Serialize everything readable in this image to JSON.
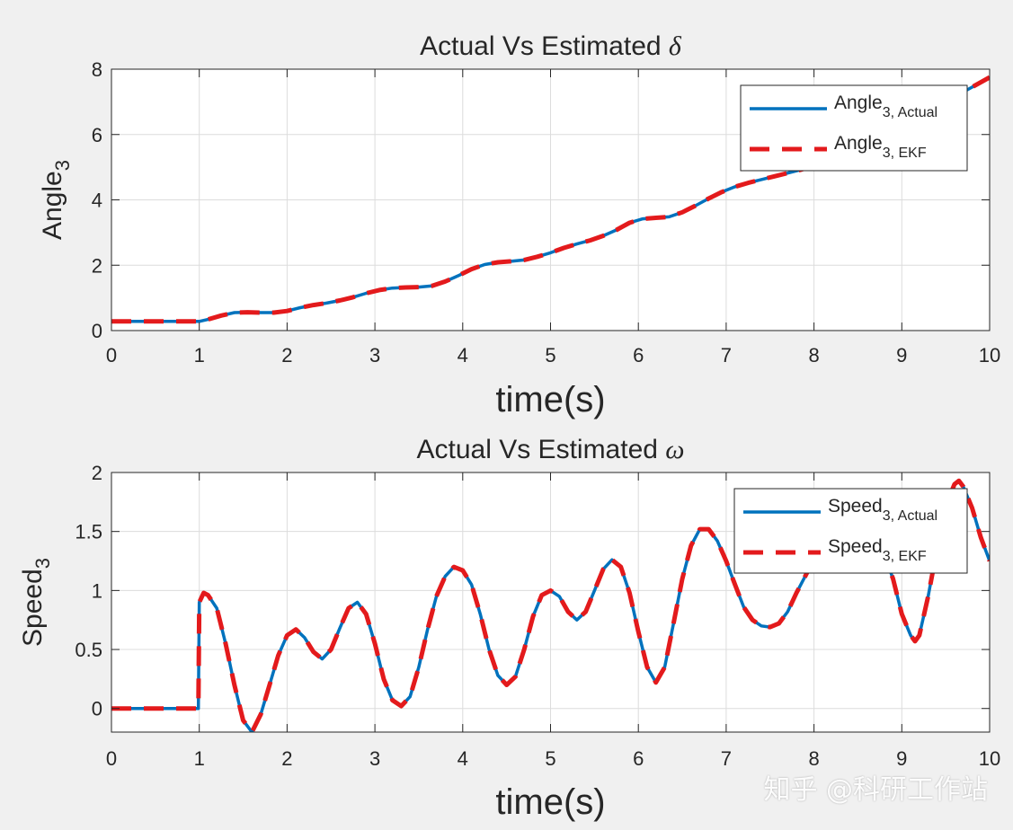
{
  "figure": {
    "background": "#f0f0f0",
    "watermark": "知乎 @科研工作站"
  },
  "chart_data": [
    {
      "type": "line",
      "title": "Actual Vs Estimated δ",
      "title_prefix": "Actual Vs Estimated ",
      "title_symbol": "δ",
      "xlabel": "time(s)",
      "ylabel": "Angle",
      "ylabel_sub": "3",
      "xlim": [
        0,
        10
      ],
      "ylim": [
        0,
        8
      ],
      "xticks": [
        0,
        1,
        2,
        3,
        4,
        5,
        6,
        7,
        8,
        9,
        10
      ],
      "yticks": [
        0,
        2,
        4,
        6,
        8
      ],
      "ytick_labels": [
        "0",
        "2",
        "4",
        "6",
        "8"
      ],
      "grid": true,
      "legend_position": "top-right",
      "series": [
        {
          "name": "Angle3, Actual",
          "label": "Angle",
          "sub": "3, Actual",
          "color": "#0072bd",
          "style": "solid",
          "x": [
            0,
            0.5,
            1,
            1.1,
            1.25,
            1.4,
            1.55,
            1.7,
            1.85,
            2,
            2.15,
            2.3,
            2.45,
            2.6,
            2.75,
            2.9,
            3.05,
            3.2,
            3.35,
            3.5,
            3.65,
            3.8,
            3.95,
            4.1,
            4.25,
            4.4,
            4.55,
            4.7,
            4.85,
            5,
            5.15,
            5.3,
            5.45,
            5.6,
            5.75,
            5.9,
            6.05,
            6.2,
            6.35,
            6.5,
            6.65,
            6.8,
            6.95,
            7.1,
            7.25,
            7.4,
            7.55,
            7.7,
            7.85,
            8,
            8.2,
            8.4,
            8.6,
            8.8,
            9,
            9.2,
            9.4,
            9.6,
            9.8,
            10
          ],
          "y": [
            0.28,
            0.28,
            0.28,
            0.34,
            0.46,
            0.55,
            0.56,
            0.55,
            0.55,
            0.6,
            0.7,
            0.78,
            0.84,
            0.92,
            1.02,
            1.14,
            1.24,
            1.3,
            1.32,
            1.33,
            1.37,
            1.5,
            1.68,
            1.88,
            2.02,
            2.09,
            2.12,
            2.16,
            2.26,
            2.38,
            2.53,
            2.65,
            2.76,
            2.9,
            3.08,
            3.3,
            3.42,
            3.45,
            3.48,
            3.62,
            3.82,
            4.04,
            4.24,
            4.4,
            4.52,
            4.62,
            4.72,
            4.82,
            4.92,
            5.05,
            5.25,
            5.45,
            5.68,
            5.95,
            6.2,
            6.5,
            6.85,
            7.15,
            7.45,
            7.75
          ]
        },
        {
          "name": "Angle3, EKF",
          "label": "Angle",
          "sub": "3, EKF",
          "color": "#e31a1c",
          "style": "dashed",
          "x": [
            0,
            0.5,
            1,
            1.1,
            1.25,
            1.4,
            1.55,
            1.7,
            1.85,
            2,
            2.15,
            2.3,
            2.45,
            2.6,
            2.75,
            2.9,
            3.05,
            3.2,
            3.35,
            3.5,
            3.65,
            3.8,
            3.95,
            4.1,
            4.25,
            4.4,
            4.55,
            4.7,
            4.85,
            5,
            5.15,
            5.3,
            5.45,
            5.6,
            5.75,
            5.9,
            6.05,
            6.2,
            6.35,
            6.5,
            6.65,
            6.8,
            6.95,
            7.1,
            7.25,
            7.4,
            7.55,
            7.7,
            7.85,
            8,
            8.2,
            8.4,
            8.6,
            8.8,
            9,
            9.2,
            9.4,
            9.6,
            9.8,
            10
          ],
          "y": [
            0.28,
            0.28,
            0.28,
            0.34,
            0.46,
            0.55,
            0.56,
            0.55,
            0.55,
            0.6,
            0.7,
            0.78,
            0.84,
            0.92,
            1.02,
            1.14,
            1.24,
            1.3,
            1.32,
            1.33,
            1.37,
            1.5,
            1.68,
            1.88,
            2.02,
            2.09,
            2.12,
            2.16,
            2.26,
            2.38,
            2.53,
            2.65,
            2.76,
            2.9,
            3.08,
            3.3,
            3.42,
            3.45,
            3.48,
            3.62,
            3.82,
            4.04,
            4.24,
            4.4,
            4.52,
            4.62,
            4.72,
            4.82,
            4.92,
            5.05,
            5.25,
            5.45,
            5.68,
            5.95,
            6.2,
            6.5,
            6.85,
            7.15,
            7.45,
            7.75
          ]
        }
      ]
    },
    {
      "type": "line",
      "title": "Actual Vs Estimated ω",
      "title_prefix": "Actual Vs Estimated ",
      "title_symbol": "ω",
      "xlabel": "time(s)",
      "ylabel": "Speed",
      "ylabel_sub": "3",
      "xlim": [
        0,
        10
      ],
      "ylim": [
        -0.2,
        2
      ],
      "xticks": [
        0,
        1,
        2,
        3,
        4,
        5,
        6,
        7,
        8,
        9,
        10
      ],
      "yticks": [
        0,
        0.5,
        1,
        1.5,
        2
      ],
      "ytick_labels": [
        "0",
        "0.5",
        "1",
        "1.5",
        "2"
      ],
      "grid": true,
      "legend_position": "top-right",
      "series": [
        {
          "name": "Speed3, Actual",
          "label": "Speed",
          "sub": "3, Actual",
          "color": "#0072bd",
          "style": "solid",
          "x": [
            0,
            0.5,
            0.99,
            1.0,
            1.05,
            1.1,
            1.2,
            1.3,
            1.4,
            1.5,
            1.6,
            1.7,
            1.8,
            1.9,
            2.0,
            2.1,
            2.2,
            2.3,
            2.4,
            2.5,
            2.6,
            2.7,
            2.8,
            2.9,
            3.0,
            3.1,
            3.2,
            3.3,
            3.4,
            3.5,
            3.6,
            3.7,
            3.8,
            3.9,
            4.0,
            4.1,
            4.2,
            4.3,
            4.4,
            4.5,
            4.6,
            4.7,
            4.8,
            4.9,
            5.0,
            5.1,
            5.2,
            5.3,
            5.4,
            5.5,
            5.6,
            5.7,
            5.8,
            5.9,
            6.0,
            6.1,
            6.2,
            6.3,
            6.4,
            6.5,
            6.6,
            6.7,
            6.8,
            6.9,
            7.0,
            7.1,
            7.2,
            7.3,
            7.4,
            7.5,
            7.6,
            7.7,
            7.8,
            7.9,
            8.0,
            8.1,
            8.2,
            8.3,
            8.4,
            8.5,
            8.6,
            8.7,
            8.8,
            8.9,
            9.0,
            9.1,
            9.15,
            9.2,
            9.3,
            9.4,
            9.5,
            9.6,
            9.65,
            9.7,
            9.8,
            9.9,
            10.0
          ],
          "y": [
            0,
            0,
            0,
            0.9,
            0.98,
            0.96,
            0.85,
            0.55,
            0.2,
            -0.1,
            -0.2,
            -0.05,
            0.2,
            0.45,
            0.62,
            0.67,
            0.6,
            0.48,
            0.42,
            0.5,
            0.68,
            0.85,
            0.9,
            0.8,
            0.55,
            0.25,
            0.07,
            0.02,
            0.1,
            0.35,
            0.67,
            0.95,
            1.12,
            1.2,
            1.17,
            1.05,
            0.8,
            0.5,
            0.28,
            0.2,
            0.27,
            0.5,
            0.78,
            0.96,
            1.0,
            0.95,
            0.82,
            0.75,
            0.82,
            1.0,
            1.18,
            1.26,
            1.2,
            0.98,
            0.65,
            0.35,
            0.22,
            0.35,
            0.72,
            1.1,
            1.38,
            1.52,
            1.52,
            1.42,
            1.25,
            1.05,
            0.86,
            0.75,
            0.7,
            0.69,
            0.72,
            0.82,
            0.98,
            1.12,
            1.27,
            1.38,
            1.45,
            1.48,
            1.47,
            1.43,
            1.38,
            1.33,
            1.3,
            1.1,
            0.8,
            0.62,
            0.57,
            0.62,
            0.95,
            1.35,
            1.72,
            1.9,
            1.93,
            1.88,
            1.7,
            1.45,
            1.25
          ]
        },
        {
          "name": "Speed3, EKF",
          "label": "Speed",
          "sub": "3, EKF",
          "color": "#e31a1c",
          "style": "dashed",
          "x": [
            0,
            0.5,
            0.99,
            1.0,
            1.05,
            1.1,
            1.2,
            1.3,
            1.4,
            1.5,
            1.6,
            1.7,
            1.8,
            1.9,
            2.0,
            2.1,
            2.2,
            2.3,
            2.4,
            2.5,
            2.6,
            2.7,
            2.8,
            2.9,
            3.0,
            3.1,
            3.2,
            3.3,
            3.4,
            3.5,
            3.6,
            3.7,
            3.8,
            3.9,
            4.0,
            4.1,
            4.2,
            4.3,
            4.4,
            4.5,
            4.6,
            4.7,
            4.8,
            4.9,
            5.0,
            5.1,
            5.2,
            5.3,
            5.4,
            5.5,
            5.6,
            5.7,
            5.8,
            5.9,
            6.0,
            6.1,
            6.2,
            6.3,
            6.4,
            6.5,
            6.6,
            6.7,
            6.8,
            6.9,
            7.0,
            7.1,
            7.2,
            7.3,
            7.4,
            7.5,
            7.6,
            7.7,
            7.8,
            7.9,
            8.0,
            8.1,
            8.2,
            8.3,
            8.4,
            8.5,
            8.6,
            8.7,
            8.8,
            8.9,
            9.0,
            9.1,
            9.15,
            9.2,
            9.3,
            9.4,
            9.5,
            9.6,
            9.65,
            9.7,
            9.8,
            9.9,
            10.0
          ],
          "y": [
            0,
            0,
            0,
            0.9,
            0.98,
            0.96,
            0.85,
            0.55,
            0.2,
            -0.1,
            -0.2,
            -0.05,
            0.2,
            0.45,
            0.62,
            0.67,
            0.6,
            0.48,
            0.42,
            0.5,
            0.68,
            0.85,
            0.9,
            0.8,
            0.55,
            0.25,
            0.07,
            0.02,
            0.1,
            0.35,
            0.67,
            0.95,
            1.12,
            1.2,
            1.17,
            1.05,
            0.8,
            0.5,
            0.28,
            0.2,
            0.27,
            0.5,
            0.78,
            0.96,
            1.0,
            0.95,
            0.82,
            0.75,
            0.82,
            1.0,
            1.18,
            1.26,
            1.2,
            0.98,
            0.65,
            0.35,
            0.22,
            0.35,
            0.72,
            1.1,
            1.38,
            1.52,
            1.52,
            1.42,
            1.25,
            1.05,
            0.86,
            0.75,
            0.7,
            0.69,
            0.72,
            0.82,
            0.98,
            1.12,
            1.27,
            1.38,
            1.45,
            1.48,
            1.47,
            1.43,
            1.38,
            1.33,
            1.3,
            1.1,
            0.8,
            0.62,
            0.57,
            0.62,
            0.95,
            1.35,
            1.72,
            1.9,
            1.93,
            1.88,
            1.7,
            1.45,
            1.25
          ]
        }
      ]
    }
  ]
}
